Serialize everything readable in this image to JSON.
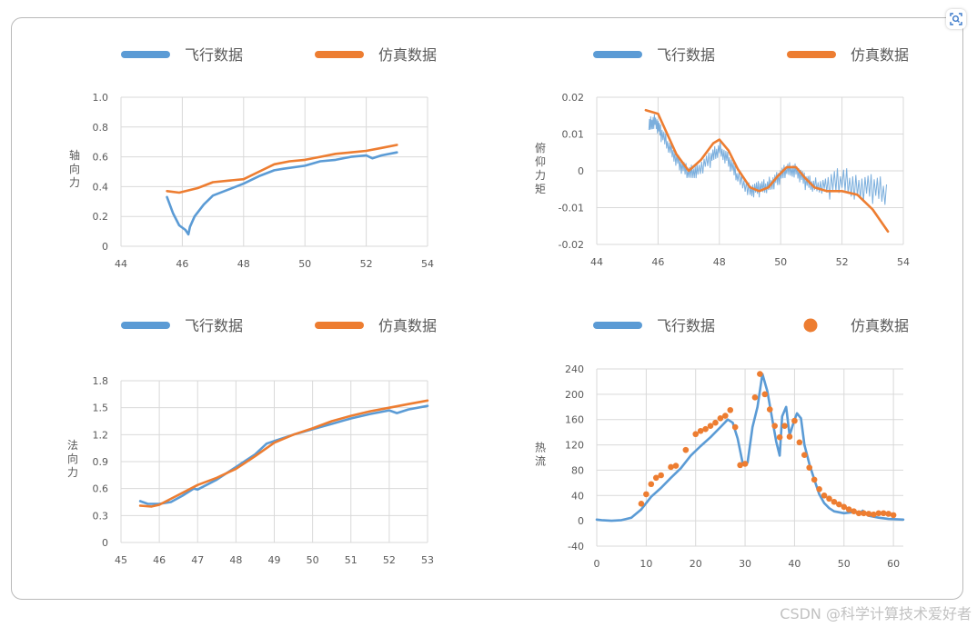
{
  "watermark": "CSDN @科学计算技术爱好者",
  "colors": {
    "flight": "#5b9bd5",
    "sim": "#ed7d31",
    "grid": "#d9d9d9",
    "axis": "#d9d9d9",
    "text": "#595959"
  },
  "chart_data": [
    {
      "type": "line",
      "legend": [
        "飞行数据",
        "仿真数据"
      ],
      "legend_markers": [
        "line",
        "line"
      ],
      "ylabel": "轴向力",
      "xlim": [
        44,
        54
      ],
      "ylim": [
        0,
        1.0
      ],
      "xticks": [
        44,
        46,
        48,
        50,
        52,
        54
      ],
      "yticks": [
        0,
        0.2,
        0.4,
        0.6,
        0.8,
        1.0
      ],
      "ytick_labels": [
        "0",
        "0.2",
        "0.4",
        "0.6",
        "0.8",
        "1.0"
      ],
      "grid": true,
      "series": [
        {
          "name": "飞行数据",
          "style": "line",
          "x": [
            45.5,
            45.7,
            45.9,
            46.1,
            46.2,
            46.25,
            46.4,
            46.7,
            47.0,
            47.5,
            48.0,
            48.5,
            49.0,
            49.3,
            50.0,
            50.5,
            51.0,
            51.5,
            52.0,
            52.2,
            52.5,
            53.0
          ],
          "y": [
            0.33,
            0.22,
            0.14,
            0.11,
            0.08,
            0.13,
            0.2,
            0.28,
            0.34,
            0.38,
            0.42,
            0.47,
            0.51,
            0.52,
            0.54,
            0.57,
            0.58,
            0.6,
            0.61,
            0.59,
            0.61,
            0.63
          ]
        },
        {
          "name": "仿真数据",
          "style": "line",
          "x": [
            45.5,
            45.9,
            46.5,
            47.0,
            47.5,
            48.0,
            48.5,
            49.0,
            49.5,
            50.0,
            50.5,
            51.0,
            51.5,
            52.0,
            52.5,
            53.0
          ],
          "y": [
            0.37,
            0.36,
            0.39,
            0.43,
            0.44,
            0.45,
            0.5,
            0.55,
            0.57,
            0.58,
            0.6,
            0.62,
            0.63,
            0.64,
            0.66,
            0.68
          ]
        }
      ]
    },
    {
      "type": "line",
      "legend": [
        "飞行数据",
        "仿真数据"
      ],
      "legend_markers": [
        "line",
        "line"
      ],
      "ylabel": "俯仰力矩",
      "xlim": [
        44,
        54
      ],
      "ylim": [
        -0.02,
        0.02
      ],
      "xticks": [
        44,
        46,
        48,
        50,
        52,
        54
      ],
      "yticks": [
        -0.02,
        -0.01,
        0,
        0.01,
        0.02
      ],
      "ytick_labels": [
        "-0.02",
        "-0.01",
        "0",
        "0.01",
        "0.02"
      ],
      "grid": true,
      "series": [
        {
          "name": "飞行数据",
          "style": "noisy",
          "x": [
            45.7,
            45.9,
            46.1,
            46.4,
            46.7,
            47.0,
            47.3,
            47.7,
            48.0,
            48.3,
            48.6,
            49.0,
            49.3,
            49.6,
            49.9,
            50.2,
            50.5,
            50.8,
            51.1,
            51.5,
            52.0,
            52.5,
            53.0,
            53.5
          ],
          "y": [
            0.012,
            0.014,
            0.01,
            0.006,
            0.002,
            -0.001,
            0.0005,
            0.003,
            0.006,
            0.003,
            -0.002,
            -0.005,
            -0.005,
            -0.004,
            -0.002,
            0.0,
            0.0005,
            -0.003,
            -0.004,
            -0.004,
            -0.003,
            -0.004,
            -0.005,
            -0.006
          ]
        },
        {
          "name": "仿真数据",
          "style": "line",
          "x": [
            45.6,
            45.8,
            46.0,
            46.3,
            46.6,
            47.0,
            47.4,
            47.8,
            48.0,
            48.3,
            48.6,
            49.0,
            49.3,
            49.6,
            49.9,
            50.2,
            50.5,
            50.8,
            51.1,
            51.5,
            52.0,
            52.5,
            53.0,
            53.5
          ],
          "y": [
            0.0165,
            0.016,
            0.0155,
            0.01,
            0.0045,
            0.0,
            0.003,
            0.0075,
            0.0085,
            0.0055,
            0.0005,
            -0.0045,
            -0.0055,
            -0.0045,
            -0.0015,
            0.001,
            0.001,
            -0.002,
            -0.0045,
            -0.0055,
            -0.0055,
            -0.0065,
            -0.0105,
            -0.0165
          ]
        }
      ]
    },
    {
      "type": "line",
      "legend": [
        "飞行数据",
        "仿真数据"
      ],
      "legend_markers": [
        "line",
        "line"
      ],
      "ylabel": "法向力",
      "xlim": [
        45,
        53
      ],
      "ylim": [
        0,
        1.8
      ],
      "xticks": [
        45,
        46,
        47,
        48,
        49,
        50,
        51,
        52,
        53
      ],
      "yticks": [
        0,
        0.3,
        0.6,
        0.9,
        1.2,
        1.5,
        1.8
      ],
      "ytick_labels": [
        "0",
        "0.3",
        "0.6",
        "0.9",
        "1.2",
        "1.5",
        "1.8"
      ],
      "grid": true,
      "series": [
        {
          "name": "飞行数据",
          "style": "line",
          "x": [
            45.5,
            45.7,
            46.0,
            46.3,
            46.6,
            46.9,
            47.0,
            47.5,
            48.0,
            48.5,
            48.8,
            49.0,
            49.5,
            50.0,
            50.5,
            51.0,
            51.5,
            52.0,
            52.2,
            52.5,
            53.0
          ],
          "y": [
            0.46,
            0.43,
            0.43,
            0.45,
            0.52,
            0.6,
            0.59,
            0.7,
            0.84,
            0.98,
            1.1,
            1.13,
            1.2,
            1.26,
            1.32,
            1.38,
            1.43,
            1.47,
            1.44,
            1.48,
            1.52
          ]
        },
        {
          "name": "仿真数据",
          "style": "line",
          "x": [
            45.5,
            45.8,
            46.0,
            46.5,
            47.0,
            47.5,
            48.0,
            48.5,
            49.0,
            49.5,
            50.0,
            50.5,
            51.0,
            51.5,
            52.0,
            52.5,
            53.0
          ],
          "y": [
            0.41,
            0.4,
            0.42,
            0.53,
            0.64,
            0.72,
            0.82,
            0.96,
            1.11,
            1.2,
            1.27,
            1.35,
            1.41,
            1.46,
            1.5,
            1.54,
            1.58
          ]
        }
      ]
    },
    {
      "type": "scatter",
      "legend": [
        "飞行数据",
        "仿真数据"
      ],
      "legend_markers": [
        "line",
        "dot"
      ],
      "ylabel": "热流",
      "xlim": [
        0,
        62
      ],
      "ylim": [
        -40,
        240
      ],
      "xticks": [
        0,
        10,
        20,
        30,
        40,
        50,
        60
      ],
      "yticks": [
        -40,
        0,
        40,
        80,
        120,
        160,
        200,
        240
      ],
      "ytick_labels": [
        "-40",
        "0",
        "40",
        "80",
        "120",
        "160",
        "200",
        "240"
      ],
      "grid": true,
      "series": [
        {
          "name": "飞行数据",
          "style": "line",
          "x": [
            0,
            1,
            3,
            5,
            7,
            9,
            11,
            13,
            15,
            17,
            19,
            21,
            23,
            25,
            26.5,
            27.5,
            28.5,
            29.5,
            30.5,
            31.5,
            32.5,
            33.5,
            34.5,
            35.5,
            36.3,
            37,
            37.5,
            38.3,
            39,
            39.8,
            40.5,
            41.3,
            42,
            43,
            44,
            45,
            46,
            47,
            48,
            50,
            52,
            53,
            53.8,
            55,
            57,
            59,
            62
          ],
          "y": [
            2,
            1,
            0,
            1,
            5,
            18,
            38,
            52,
            68,
            83,
            103,
            118,
            132,
            148,
            160,
            155,
            130,
            92,
            92,
            148,
            180,
            232,
            205,
            160,
            125,
            103,
            165,
            180,
            135,
            155,
            170,
            162,
            120,
            90,
            65,
            42,
            28,
            20,
            15,
            12,
            14,
            11,
            16,
            8,
            5,
            3,
            2
          ]
        },
        {
          "name": "仿真数据",
          "style": "dots",
          "x": [
            9,
            10,
            11,
            12,
            13,
            15,
            16,
            18,
            20,
            21,
            22,
            23,
            24,
            25,
            26,
            27,
            28,
            29,
            30,
            32,
            33,
            34,
            35,
            36,
            37,
            38,
            39,
            40,
            41,
            42,
            43,
            44,
            45,
            46,
            47,
            48,
            49,
            50,
            51,
            52,
            53,
            54,
            55,
            56,
            57,
            58,
            59,
            60
          ],
          "y": [
            27,
            42,
            58,
            68,
            72,
            85,
            87,
            112,
            137,
            142,
            145,
            150,
            155,
            162,
            166,
            175,
            148,
            88,
            90,
            195,
            232,
            200,
            176,
            150,
            132,
            150,
            133,
            158,
            124,
            104,
            84,
            65,
            50,
            40,
            35,
            30,
            26,
            22,
            18,
            15,
            12,
            12,
            11,
            10,
            12,
            12,
            11,
            9
          ]
        }
      ]
    }
  ]
}
